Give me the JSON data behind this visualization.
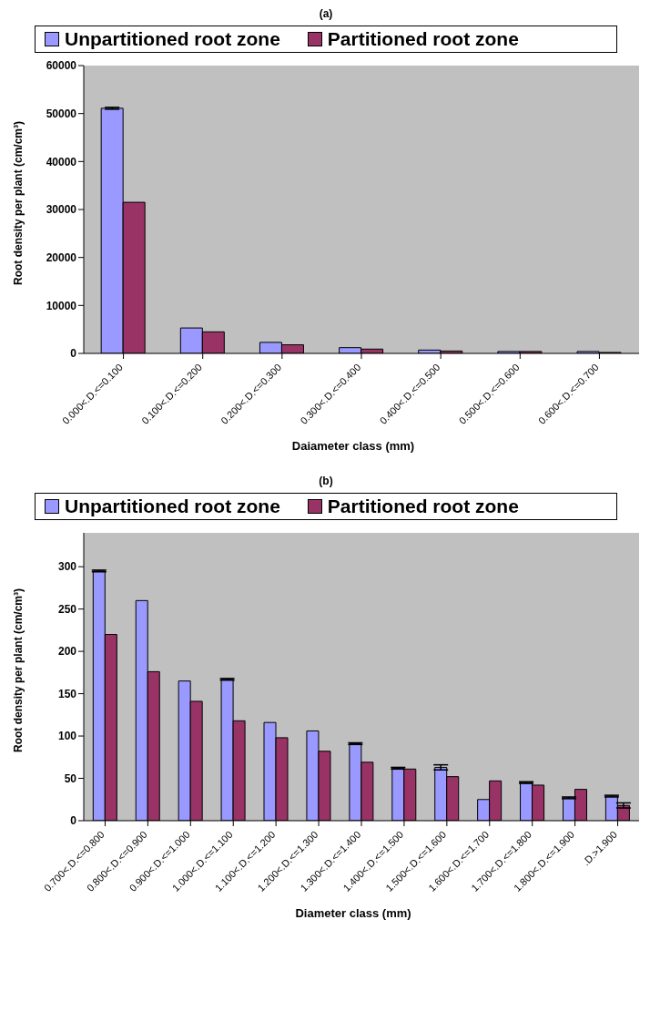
{
  "chart_data": [
    {
      "type": "bar",
      "title": "(a)",
      "xlabel": "Daiameter class (mm)",
      "ylabel": "Root density per plant (cm/cm³)",
      "categories": [
        "0.000<.D.<=0.100",
        "0.100<.D.<=0.200",
        "0.200<.D.<=0.300",
        "0.300<.D.<=0.400",
        "0.400<.D.<=0.500",
        "0.500<.D.<=0.600",
        "0.600<.D.<=0.700"
      ],
      "series": [
        {
          "name": "Unpartitioned root zone",
          "color": "#9999ff",
          "values": [
            51100,
            5300,
            2300,
            1200,
            700,
            400,
            400
          ],
          "errors": [
            200,
            null,
            null,
            null,
            null,
            null,
            null
          ]
        },
        {
          "name": "Partitioned root zone",
          "color": "#993366",
          "values": [
            31500,
            4500,
            1800,
            900,
            500,
            400,
            200
          ]
        }
      ],
      "ylim": [
        0,
        60000
      ],
      "yticks": [
        0,
        10000,
        20000,
        30000,
        40000,
        50000,
        60000
      ],
      "grid": false,
      "legend": "top"
    },
    {
      "type": "bar",
      "title": "(b)",
      "xlabel": "Diameter class (mm)",
      "ylabel": "Root density per plant (cm/cm³)",
      "categories": [
        "0.700<.D.<=0.800",
        "0.800<.D.<=0.900",
        "0.900<.D.<=1.000",
        "1.000<.D.<=1.100",
        "1.100<.D.<=1.200",
        "1.200<.D.<=1.300",
        "1.300<.D.<=1.400",
        "1.400<.D.<=1.500",
        "1.500<.D.<=1.600",
        "1.600<.D.<=1.700",
        "1.700<.D.<=1.800",
        "1.800<.D.<=1.900",
        ".D.>1.900"
      ],
      "series": [
        {
          "name": "Unpartitioned root zone",
          "color": "#9999ff",
          "values": [
            295,
            260,
            165,
            167,
            116,
            106,
            91,
            62,
            63,
            25,
            45,
            27,
            29
          ],
          "errors": [
            1,
            null,
            null,
            1,
            null,
            null,
            1,
            1,
            3,
            null,
            1,
            1,
            1
          ]
        },
        {
          "name": "Partitioned root zone",
          "color": "#993366",
          "values": [
            220,
            176,
            141,
            118,
            98,
            82,
            69,
            61,
            52,
            47,
            42,
            37,
            18
          ],
          "errors": [
            null,
            null,
            null,
            null,
            null,
            null,
            null,
            null,
            null,
            null,
            null,
            null,
            3
          ]
        }
      ],
      "ylim": [
        0,
        340
      ],
      "yticks": [
        0,
        50,
        100,
        150,
        200,
        250,
        300
      ],
      "grid": false,
      "legend": "top"
    }
  ]
}
